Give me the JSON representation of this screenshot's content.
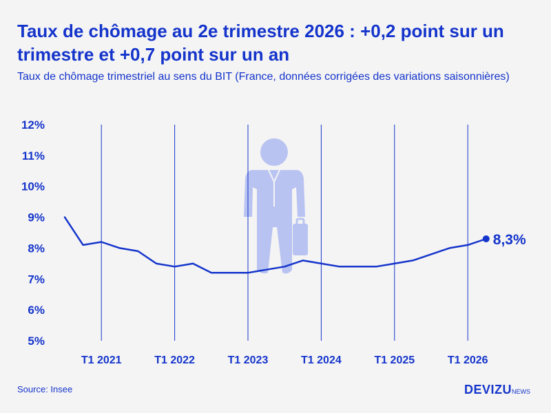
{
  "header": {
    "title": "Taux de chômage au 2e trimestre 2026 : +0,2 point sur un trimestre et +0,7 point sur un an",
    "subtitle": "Taux de chômage trimestriel au sens du BIT (France, données corrigées des variations saisonnières)"
  },
  "footer": {
    "source": "Source: Insee",
    "logo_main": "DEVIZU",
    "logo_sub": "NEWS"
  },
  "colors": {
    "accent": "#1434cb",
    "background": "#f4f4f4",
    "figure": "#b9c3f1"
  },
  "chart_data": {
    "type": "line",
    "ylim": [
      5,
      12
    ],
    "y_ticks": [
      {
        "value": 5,
        "label": "5%"
      },
      {
        "value": 6,
        "label": "6%"
      },
      {
        "value": 7,
        "label": "7%"
      },
      {
        "value": 8,
        "label": "8%"
      },
      {
        "value": 9,
        "label": "9%"
      },
      {
        "value": 10,
        "label": "10%"
      },
      {
        "value": 11,
        "label": "11%"
      },
      {
        "value": 12,
        "label": "12%"
      }
    ],
    "x_ticks": [
      {
        "quarter": "2021-Q1",
        "label": "T1 2021"
      },
      {
        "quarter": "2022-Q1",
        "label": "T1 2022"
      },
      {
        "quarter": "2023-Q1",
        "label": "T1 2023"
      },
      {
        "quarter": "2024-Q1",
        "label": "T1 2024"
      },
      {
        "quarter": "2025-Q1",
        "label": "T1 2025"
      },
      {
        "quarter": "2026-Q1",
        "label": "T1 2026"
      }
    ],
    "x": [
      "2020-Q3",
      "2020-Q4",
      "2021-Q1",
      "2021-Q2",
      "2021-Q3",
      "2021-Q4",
      "2022-Q1",
      "2022-Q2",
      "2022-Q3",
      "2022-Q4",
      "2023-Q1",
      "2023-Q2",
      "2023-Q3",
      "2023-Q4",
      "2024-Q1",
      "2024-Q2",
      "2024-Q3",
      "2024-Q4",
      "2025-Q1",
      "2025-Q2",
      "2025-Q3",
      "2025-Q4",
      "2026-Q1",
      "2026-Q2"
    ],
    "values": [
      9.0,
      8.1,
      8.2,
      8.0,
      7.9,
      7.5,
      7.4,
      7.5,
      7.2,
      7.2,
      7.2,
      7.3,
      7.4,
      7.6,
      7.5,
      7.4,
      7.4,
      7.4,
      7.5,
      7.6,
      7.8,
      8.0,
      8.1,
      8.3
    ],
    "end_label": "8,3%",
    "grid": "vertical lines at each T1 quarter"
  }
}
